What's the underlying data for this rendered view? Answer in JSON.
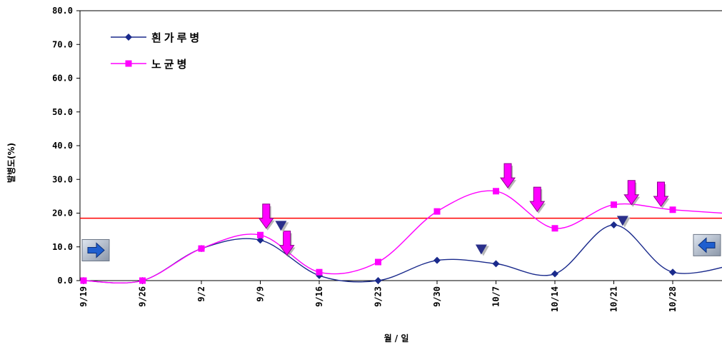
{
  "chart_data": {
    "type": "line",
    "xlabel": "월 / 일",
    "ylabel": "발병도(%)",
    "x_tick_labels": [
      "9/19",
      "9/26",
      "9/2",
      "9/9",
      "9/16",
      "9/23",
      "9/30",
      "10/7",
      "10/14",
      "10/21",
      "10/28"
    ],
    "y_tick_labels": [
      "0.0",
      "10.0",
      "20.0",
      "30.0",
      "40.0",
      "50.0",
      "60.0",
      "70.0",
      "80.0"
    ],
    "ylim": [
      0,
      80
    ],
    "x_index_range": [
      0,
      11.3
    ],
    "grid": false,
    "legend_position": "top-left",
    "series": [
      {
        "name": "흰가루병",
        "color": "#1a2a8c",
        "marker": "diamond",
        "x": [
          0,
          1,
          2,
          3,
          4,
          5,
          6,
          7,
          8,
          9,
          10,
          11.3
        ],
        "values": [
          0.0,
          0.0,
          9.5,
          12.0,
          1.5,
          0.0,
          6.0,
          5.0,
          2.0,
          16.5,
          2.5,
          6.0
        ]
      },
      {
        "name": "노균병",
        "color": "#ff00ff",
        "marker": "square",
        "x": [
          0,
          1,
          2,
          3,
          4,
          5,
          6,
          7,
          8,
          9,
          10,
          11.3
        ],
        "values": [
          0.0,
          0.0,
          9.5,
          13.5,
          2.5,
          5.5,
          20.5,
          26.5,
          15.5,
          22.5,
          21.0,
          19.5
        ]
      }
    ],
    "threshold_line": {
      "value": 18.5,
      "color": "#ff0000"
    },
    "annotations": {
      "down_arrows": [
        {
          "x": 3.1,
          "y": 15.5
        },
        {
          "x": 3.45,
          "y": 7.5
        },
        {
          "x": 7.2,
          "y": 27.5
        },
        {
          "x": 7.7,
          "y": 20.5
        },
        {
          "x": 9.3,
          "y": 22.5
        },
        {
          "x": 9.8,
          "y": 22.0
        }
      ],
      "triangle_markers": [
        {
          "x": 3.35,
          "y": 16.0
        },
        {
          "x": 6.75,
          "y": 9.0
        },
        {
          "x": 9.15,
          "y": 17.5
        }
      ],
      "side_arrows": [
        {
          "direction": "right",
          "side": "left",
          "y": 9.0
        },
        {
          "direction": "left",
          "side": "right",
          "y": 10.5
        }
      ]
    }
  }
}
